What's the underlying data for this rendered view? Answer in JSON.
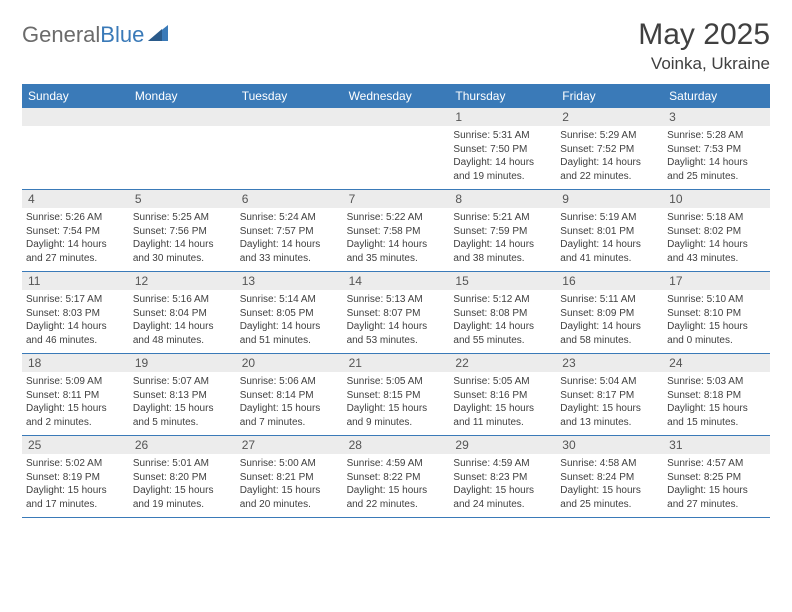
{
  "logo": {
    "text1": "General",
    "text2": "Blue"
  },
  "title": "May 2025",
  "location": "Voinka, Ukraine",
  "colors": {
    "header_bg": "#3a7ab8",
    "header_text": "#ffffff",
    "daynum_bg": "#ececec",
    "body_text": "#404040",
    "logo_gray": "#6b6b6b",
    "logo_blue": "#3a7ab8",
    "border": "#3a7ab8"
  },
  "day_labels": [
    "Sunday",
    "Monday",
    "Tuesday",
    "Wednesday",
    "Thursday",
    "Friday",
    "Saturday"
  ],
  "weeks": [
    [
      {
        "n": "",
        "sr": "",
        "ss": "",
        "dl1": "",
        "dl2": ""
      },
      {
        "n": "",
        "sr": "",
        "ss": "",
        "dl1": "",
        "dl2": ""
      },
      {
        "n": "",
        "sr": "",
        "ss": "",
        "dl1": "",
        "dl2": ""
      },
      {
        "n": "",
        "sr": "",
        "ss": "",
        "dl1": "",
        "dl2": ""
      },
      {
        "n": "1",
        "sr": "Sunrise: 5:31 AM",
        "ss": "Sunset: 7:50 PM",
        "dl1": "Daylight: 14 hours",
        "dl2": "and 19 minutes."
      },
      {
        "n": "2",
        "sr": "Sunrise: 5:29 AM",
        "ss": "Sunset: 7:52 PM",
        "dl1": "Daylight: 14 hours",
        "dl2": "and 22 minutes."
      },
      {
        "n": "3",
        "sr": "Sunrise: 5:28 AM",
        "ss": "Sunset: 7:53 PM",
        "dl1": "Daylight: 14 hours",
        "dl2": "and 25 minutes."
      }
    ],
    [
      {
        "n": "4",
        "sr": "Sunrise: 5:26 AM",
        "ss": "Sunset: 7:54 PM",
        "dl1": "Daylight: 14 hours",
        "dl2": "and 27 minutes."
      },
      {
        "n": "5",
        "sr": "Sunrise: 5:25 AM",
        "ss": "Sunset: 7:56 PM",
        "dl1": "Daylight: 14 hours",
        "dl2": "and 30 minutes."
      },
      {
        "n": "6",
        "sr": "Sunrise: 5:24 AM",
        "ss": "Sunset: 7:57 PM",
        "dl1": "Daylight: 14 hours",
        "dl2": "and 33 minutes."
      },
      {
        "n": "7",
        "sr": "Sunrise: 5:22 AM",
        "ss": "Sunset: 7:58 PM",
        "dl1": "Daylight: 14 hours",
        "dl2": "and 35 minutes."
      },
      {
        "n": "8",
        "sr": "Sunrise: 5:21 AM",
        "ss": "Sunset: 7:59 PM",
        "dl1": "Daylight: 14 hours",
        "dl2": "and 38 minutes."
      },
      {
        "n": "9",
        "sr": "Sunrise: 5:19 AM",
        "ss": "Sunset: 8:01 PM",
        "dl1": "Daylight: 14 hours",
        "dl2": "and 41 minutes."
      },
      {
        "n": "10",
        "sr": "Sunrise: 5:18 AM",
        "ss": "Sunset: 8:02 PM",
        "dl1": "Daylight: 14 hours",
        "dl2": "and 43 minutes."
      }
    ],
    [
      {
        "n": "11",
        "sr": "Sunrise: 5:17 AM",
        "ss": "Sunset: 8:03 PM",
        "dl1": "Daylight: 14 hours",
        "dl2": "and 46 minutes."
      },
      {
        "n": "12",
        "sr": "Sunrise: 5:16 AM",
        "ss": "Sunset: 8:04 PM",
        "dl1": "Daylight: 14 hours",
        "dl2": "and 48 minutes."
      },
      {
        "n": "13",
        "sr": "Sunrise: 5:14 AM",
        "ss": "Sunset: 8:05 PM",
        "dl1": "Daylight: 14 hours",
        "dl2": "and 51 minutes."
      },
      {
        "n": "14",
        "sr": "Sunrise: 5:13 AM",
        "ss": "Sunset: 8:07 PM",
        "dl1": "Daylight: 14 hours",
        "dl2": "and 53 minutes."
      },
      {
        "n": "15",
        "sr": "Sunrise: 5:12 AM",
        "ss": "Sunset: 8:08 PM",
        "dl1": "Daylight: 14 hours",
        "dl2": "and 55 minutes."
      },
      {
        "n": "16",
        "sr": "Sunrise: 5:11 AM",
        "ss": "Sunset: 8:09 PM",
        "dl1": "Daylight: 14 hours",
        "dl2": "and 58 minutes."
      },
      {
        "n": "17",
        "sr": "Sunrise: 5:10 AM",
        "ss": "Sunset: 8:10 PM",
        "dl1": "Daylight: 15 hours",
        "dl2": "and 0 minutes."
      }
    ],
    [
      {
        "n": "18",
        "sr": "Sunrise: 5:09 AM",
        "ss": "Sunset: 8:11 PM",
        "dl1": "Daylight: 15 hours",
        "dl2": "and 2 minutes."
      },
      {
        "n": "19",
        "sr": "Sunrise: 5:07 AM",
        "ss": "Sunset: 8:13 PM",
        "dl1": "Daylight: 15 hours",
        "dl2": "and 5 minutes."
      },
      {
        "n": "20",
        "sr": "Sunrise: 5:06 AM",
        "ss": "Sunset: 8:14 PM",
        "dl1": "Daylight: 15 hours",
        "dl2": "and 7 minutes."
      },
      {
        "n": "21",
        "sr": "Sunrise: 5:05 AM",
        "ss": "Sunset: 8:15 PM",
        "dl1": "Daylight: 15 hours",
        "dl2": "and 9 minutes."
      },
      {
        "n": "22",
        "sr": "Sunrise: 5:05 AM",
        "ss": "Sunset: 8:16 PM",
        "dl1": "Daylight: 15 hours",
        "dl2": "and 11 minutes."
      },
      {
        "n": "23",
        "sr": "Sunrise: 5:04 AM",
        "ss": "Sunset: 8:17 PM",
        "dl1": "Daylight: 15 hours",
        "dl2": "and 13 minutes."
      },
      {
        "n": "24",
        "sr": "Sunrise: 5:03 AM",
        "ss": "Sunset: 8:18 PM",
        "dl1": "Daylight: 15 hours",
        "dl2": "and 15 minutes."
      }
    ],
    [
      {
        "n": "25",
        "sr": "Sunrise: 5:02 AM",
        "ss": "Sunset: 8:19 PM",
        "dl1": "Daylight: 15 hours",
        "dl2": "and 17 minutes."
      },
      {
        "n": "26",
        "sr": "Sunrise: 5:01 AM",
        "ss": "Sunset: 8:20 PM",
        "dl1": "Daylight: 15 hours",
        "dl2": "and 19 minutes."
      },
      {
        "n": "27",
        "sr": "Sunrise: 5:00 AM",
        "ss": "Sunset: 8:21 PM",
        "dl1": "Daylight: 15 hours",
        "dl2": "and 20 minutes."
      },
      {
        "n": "28",
        "sr": "Sunrise: 4:59 AM",
        "ss": "Sunset: 8:22 PM",
        "dl1": "Daylight: 15 hours",
        "dl2": "and 22 minutes."
      },
      {
        "n": "29",
        "sr": "Sunrise: 4:59 AM",
        "ss": "Sunset: 8:23 PM",
        "dl1": "Daylight: 15 hours",
        "dl2": "and 24 minutes."
      },
      {
        "n": "30",
        "sr": "Sunrise: 4:58 AM",
        "ss": "Sunset: 8:24 PM",
        "dl1": "Daylight: 15 hours",
        "dl2": "and 25 minutes."
      },
      {
        "n": "31",
        "sr": "Sunrise: 4:57 AM",
        "ss": "Sunset: 8:25 PM",
        "dl1": "Daylight: 15 hours",
        "dl2": "and 27 minutes."
      }
    ]
  ]
}
